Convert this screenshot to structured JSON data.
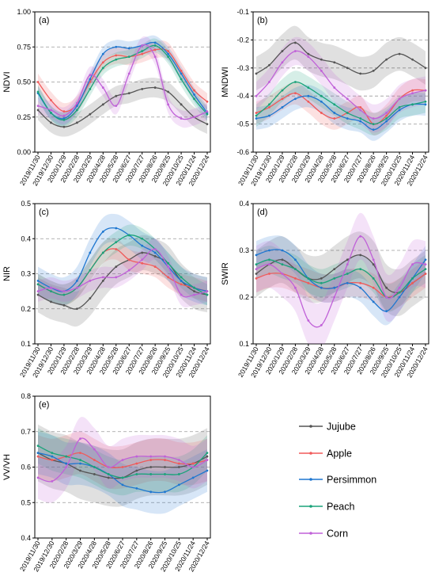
{
  "colors": {
    "Jujube": "#555555",
    "Apple": "#f05a5a",
    "Persimmon": "#1f77d0",
    "Peach": "#1aa37a",
    "Corn": "#c061d8"
  },
  "chart_data": [
    {
      "type": "line",
      "label": "(a)",
      "ylabel": "NDVI",
      "ylim": [
        0,
        1
      ],
      "yticks": [
        "0.00",
        "0.25",
        "0.50",
        "0.75",
        "1.00"
      ],
      "x": [
        "2019/11/30",
        "2019/12/30",
        "2020/1/29",
        "2020/2/28",
        "2020/3/29",
        "2020/4/28",
        "2020/5/28",
        "2020/6/27",
        "2020/7/27",
        "2020/8/26",
        "2020/9/25",
        "2020/10/25",
        "2020/11/24",
        "2020/12/24"
      ],
      "series": [
        {
          "name": "Jujube",
          "values": [
            0.3,
            0.21,
            0.18,
            0.21,
            0.27,
            0.34,
            0.4,
            0.42,
            0.45,
            0.46,
            0.43,
            0.34,
            0.25,
            0.2
          ],
          "spread": 0.07
        },
        {
          "name": "Apple",
          "values": [
            0.5,
            0.37,
            0.29,
            0.34,
            0.5,
            0.64,
            0.69,
            0.68,
            0.7,
            0.73,
            0.72,
            0.58,
            0.44,
            0.36
          ],
          "spread": 0.06
        },
        {
          "name": "Persimmon",
          "values": [
            0.42,
            0.28,
            0.24,
            0.33,
            0.52,
            0.7,
            0.75,
            0.74,
            0.76,
            0.78,
            0.7,
            0.56,
            0.41,
            0.28
          ],
          "spread": 0.05
        },
        {
          "name": "Peach",
          "values": [
            0.43,
            0.28,
            0.23,
            0.3,
            0.45,
            0.6,
            0.66,
            0.68,
            0.72,
            0.76,
            0.68,
            0.52,
            0.38,
            0.27
          ],
          "spread": 0.05
        },
        {
          "name": "Corn",
          "values": [
            0.33,
            0.3,
            0.26,
            0.35,
            0.55,
            0.46,
            0.33,
            0.56,
            0.76,
            0.68,
            0.34,
            0.24,
            0.25,
            0.29
          ],
          "spread": 0.06
        }
      ]
    },
    {
      "type": "line",
      "label": "(b)",
      "ylabel": "MNDWI",
      "ylim": [
        -0.6,
        -0.1
      ],
      "yticks": [
        "-0.6",
        "-0.5",
        "-0.4",
        "-0.3",
        "-0.2",
        "-0.1"
      ],
      "x": [
        "2019/11/30",
        "2019/12/30",
        "2020/1/29",
        "2020/2/28",
        "2020/3/29",
        "2020/4/28",
        "2020/5/28",
        "2020/6/27",
        "2020/7/27",
        "2020/8/26",
        "2020/9/25",
        "2020/10/25",
        "2020/11/24",
        "2020/12/24"
      ],
      "series": [
        {
          "name": "Jujube",
          "values": [
            -0.32,
            -0.29,
            -0.24,
            -0.21,
            -0.25,
            -0.27,
            -0.28,
            -0.3,
            -0.32,
            -0.31,
            -0.27,
            -0.25,
            -0.27,
            -0.3
          ],
          "spread": 0.06
        },
        {
          "name": "Apple",
          "values": [
            -0.46,
            -0.44,
            -0.41,
            -0.39,
            -0.42,
            -0.46,
            -0.48,
            -0.46,
            -0.44,
            -0.5,
            -0.47,
            -0.41,
            -0.38,
            -0.38
          ],
          "spread": 0.04
        },
        {
          "name": "Persimmon",
          "values": [
            -0.48,
            -0.47,
            -0.44,
            -0.41,
            -0.4,
            -0.42,
            -0.46,
            -0.48,
            -0.49,
            -0.52,
            -0.49,
            -0.45,
            -0.43,
            -0.43
          ],
          "spread": 0.04
        },
        {
          "name": "Peach",
          "values": [
            -0.47,
            -0.43,
            -0.38,
            -0.35,
            -0.37,
            -0.4,
            -0.43,
            -0.46,
            -0.48,
            -0.5,
            -0.48,
            -0.44,
            -0.43,
            -0.42
          ],
          "spread": 0.04
        },
        {
          "name": "Corn",
          "values": [
            -0.4,
            -0.35,
            -0.28,
            -0.24,
            -0.26,
            -0.31,
            -0.37,
            -0.41,
            -0.45,
            -0.48,
            -0.46,
            -0.41,
            -0.39,
            -0.38
          ],
          "spread": 0.05
        }
      ]
    },
    {
      "type": "line",
      "label": "(c)",
      "ylabel": "NIR",
      "ylim": [
        0.1,
        0.5
      ],
      "yticks": [
        "0.1",
        "0.2",
        "0.3",
        "0.4",
        "0.5"
      ],
      "x": [
        "2019/11/30",
        "2019/12/30",
        "2020/1/29",
        "2020/2/28",
        "2020/3/29",
        "2020/4/28",
        "2020/5/28",
        "2020/6/27",
        "2020/7/27",
        "2020/8/26",
        "2020/9/25",
        "2020/10/25",
        "2020/11/24",
        "2020/12/24"
      ],
      "series": [
        {
          "name": "Jujube",
          "values": [
            0.24,
            0.22,
            0.21,
            0.2,
            0.23,
            0.28,
            0.32,
            0.34,
            0.36,
            0.35,
            0.33,
            0.28,
            0.25,
            0.24
          ],
          "spread": 0.05
        },
        {
          "name": "Apple",
          "values": [
            0.27,
            0.25,
            0.24,
            0.26,
            0.31,
            0.36,
            0.37,
            0.34,
            0.33,
            0.32,
            0.29,
            0.27,
            0.26,
            0.25
          ],
          "spread": 0.03
        },
        {
          "name": "Persimmon",
          "values": [
            0.28,
            0.26,
            0.25,
            0.28,
            0.36,
            0.42,
            0.43,
            0.41,
            0.38,
            0.36,
            0.32,
            0.28,
            0.26,
            0.25
          ],
          "spread": 0.04
        },
        {
          "name": "Peach",
          "values": [
            0.27,
            0.25,
            0.24,
            0.26,
            0.31,
            0.36,
            0.39,
            0.41,
            0.4,
            0.37,
            0.33,
            0.29,
            0.26,
            0.24
          ],
          "spread": 0.03
        },
        {
          "name": "Corn",
          "values": [
            0.25,
            0.26,
            0.25,
            0.26,
            0.28,
            0.29,
            0.29,
            0.31,
            0.34,
            0.37,
            0.32,
            0.24,
            0.24,
            0.25
          ],
          "spread": 0.03
        }
      ]
    },
    {
      "type": "line",
      "label": "(d)",
      "ylabel": "SWIR",
      "ylim": [
        0.1,
        0.4
      ],
      "yticks": [
        "0.1",
        "0.2",
        "0.3",
        "0.4"
      ],
      "x": [
        "2019/11/30",
        "2019/12/30",
        "2020/1/29",
        "2020/2/28",
        "2020/3/29",
        "2020/4/28",
        "2020/5/28",
        "2020/6/27",
        "2020/7/27",
        "2020/8/26",
        "2020/9/25",
        "2020/10/25",
        "2020/11/24",
        "2020/12/24"
      ],
      "series": [
        {
          "name": "Jujube",
          "values": [
            0.25,
            0.27,
            0.28,
            0.26,
            0.24,
            0.24,
            0.26,
            0.28,
            0.29,
            0.27,
            0.22,
            0.21,
            0.23,
            0.25
          ],
          "spread": 0.05
        },
        {
          "name": "Apple",
          "values": [
            0.24,
            0.25,
            0.25,
            0.24,
            0.23,
            0.22,
            0.22,
            0.23,
            0.23,
            0.22,
            0.2,
            0.21,
            0.23,
            0.25
          ],
          "spread": 0.03
        },
        {
          "name": "Persimmon",
          "values": [
            0.29,
            0.3,
            0.3,
            0.28,
            0.24,
            0.22,
            0.22,
            0.23,
            0.22,
            0.19,
            0.17,
            0.2,
            0.24,
            0.28
          ],
          "spread": 0.03
        },
        {
          "name": "Peach",
          "values": [
            0.27,
            0.28,
            0.27,
            0.26,
            0.24,
            0.23,
            0.24,
            0.25,
            0.26,
            0.24,
            0.2,
            0.21,
            0.24,
            0.26
          ],
          "spread": 0.03
        },
        {
          "name": "Corn",
          "values": [
            0.26,
            0.27,
            0.25,
            0.22,
            0.15,
            0.14,
            0.2,
            0.27,
            0.33,
            0.28,
            0.2,
            0.22,
            0.27,
            0.27
          ],
          "spread": 0.05
        }
      ]
    },
    {
      "type": "line",
      "label": "(e)",
      "ylabel": "VV/VH",
      "ylim": [
        0.4,
        0.8
      ],
      "yticks": [
        "0.4",
        "0.5",
        "0.6",
        "0.7",
        "0.8"
      ],
      "x": [
        "2019/11/30",
        "2019/12/30",
        "2020/2/28",
        "2020/3/29",
        "2020/4/28",
        "2020/5/28",
        "2020/6/27",
        "2020/7/27",
        "2020/8/26",
        "2020/9/25",
        "2020/10/25",
        "2020/11/24",
        "2020/12/24"
      ],
      "series": [
        {
          "name": "Jujube",
          "values": [
            0.64,
            0.62,
            0.61,
            0.59,
            0.58,
            0.57,
            0.57,
            0.59,
            0.6,
            0.6,
            0.6,
            0.61,
            0.63
          ],
          "spread": 0.08
        },
        {
          "name": "Apple",
          "values": [
            0.63,
            0.62,
            0.63,
            0.64,
            0.62,
            0.6,
            0.6,
            0.61,
            0.62,
            0.62,
            0.61,
            0.61,
            0.62
          ],
          "spread": 0.06
        },
        {
          "name": "Persimmon",
          "values": [
            0.64,
            0.63,
            0.61,
            0.61,
            0.6,
            0.58,
            0.55,
            0.54,
            0.53,
            0.53,
            0.55,
            0.57,
            0.59
          ],
          "spread": 0.06
        },
        {
          "name": "Peach",
          "values": [
            0.66,
            0.64,
            0.63,
            0.62,
            0.6,
            0.58,
            0.57,
            0.58,
            0.58,
            0.58,
            0.58,
            0.6,
            0.64
          ],
          "spread": 0.05
        },
        {
          "name": "Corn",
          "values": [
            0.57,
            0.56,
            0.6,
            0.68,
            0.65,
            0.6,
            0.62,
            0.63,
            0.63,
            0.63,
            0.62,
            0.6,
            0.62
          ],
          "spread": 0.06
        }
      ]
    }
  ],
  "legend": [
    "Jujube",
    "Apple",
    "Persimmon",
    "Peach",
    "Corn"
  ]
}
